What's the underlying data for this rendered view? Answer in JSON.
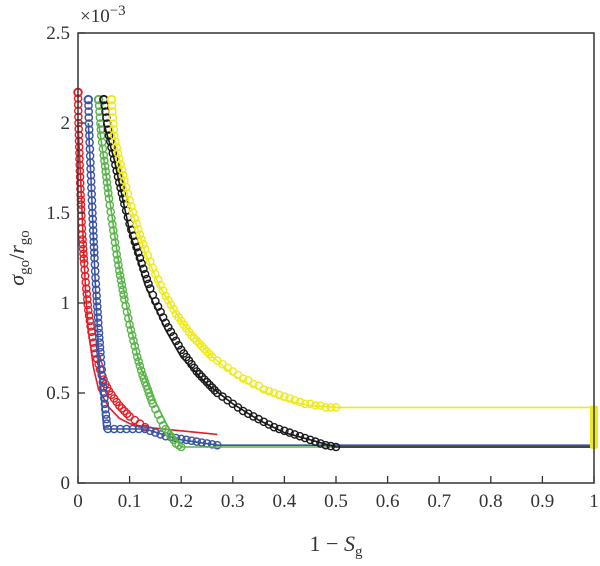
{
  "chart_data": {
    "type": "line",
    "title": "",
    "xlabel": {
      "prefix": "1 − ",
      "var": "S",
      "sub": "g"
    },
    "ylabel": {
      "num": "σ",
      "num_sub": "go",
      "slash": "/",
      "den": "r",
      "den_sub": "go"
    },
    "y_exponent": "×10",
    "y_exponent_power": "−3",
    "xlim": [
      0,
      1
    ],
    "ylim": [
      0,
      2.5
    ],
    "x_ticks": [
      "0",
      "0.1",
      "0.2",
      "0.3",
      "0.4",
      "0.5",
      "0.6",
      "0.7",
      "0.8",
      "0.9",
      "1"
    ],
    "x_tick_values": [
      0,
      0.1,
      0.2,
      0.3,
      0.4,
      0.5,
      0.6,
      0.7,
      0.8,
      0.9,
      1
    ],
    "y_ticks": [
      "0",
      "0.5",
      "1",
      "1.5",
      "2",
      "2.5"
    ],
    "y_tick_values": [
      0,
      0.5,
      1,
      1.5,
      2,
      2.5
    ],
    "grid": false,
    "legend": "none",
    "series": [
      {
        "color": "#e41e26",
        "line": [
          [
            0.0,
            2.0
          ],
          [
            0.005,
            1.7
          ],
          [
            0.01,
            1.35
          ],
          [
            0.015,
            1.05
          ],
          [
            0.02,
            0.85
          ],
          [
            0.03,
            0.64
          ],
          [
            0.04,
            0.52
          ],
          [
            0.06,
            0.42
          ],
          [
            0.08,
            0.36
          ],
          [
            0.1,
            0.33
          ],
          [
            0.13,
            0.31
          ],
          [
            0.27,
            0.27
          ]
        ],
        "markers_curve": [
          [
            0.0,
            2.17
          ],
          [
            0.001,
            2.0
          ],
          [
            0.002,
            1.9
          ],
          [
            0.003,
            1.8
          ],
          [
            0.004,
            1.7
          ],
          [
            0.005,
            1.6
          ],
          [
            0.006,
            1.52
          ],
          [
            0.007,
            1.45
          ],
          [
            0.008,
            1.38
          ],
          [
            0.01,
            1.3
          ],
          [
            0.012,
            1.22
          ],
          [
            0.014,
            1.15
          ],
          [
            0.016,
            1.08
          ],
          [
            0.018,
            1.02
          ],
          [
            0.02,
            0.96
          ],
          [
            0.023,
            0.9
          ],
          [
            0.026,
            0.84
          ],
          [
            0.03,
            0.78
          ],
          [
            0.034,
            0.72
          ],
          [
            0.04,
            0.66
          ],
          [
            0.046,
            0.6
          ],
          [
            0.053,
            0.55
          ],
          [
            0.06,
            0.51
          ],
          [
            0.07,
            0.47
          ],
          [
            0.08,
            0.43
          ],
          [
            0.09,
            0.4
          ],
          [
            0.1,
            0.37
          ],
          [
            0.11,
            0.35
          ],
          [
            0.12,
            0.33
          ],
          [
            0.13,
            0.31
          ]
        ],
        "markers_top": [
          [
            0.0,
            2.17
          ]
        ]
      },
      {
        "color": "#3a53a4",
        "line": [
          [
            0.02,
            2.0
          ],
          [
            0.025,
            1.7
          ],
          [
            0.03,
            1.35
          ],
          [
            0.035,
            1.0
          ],
          [
            0.04,
            0.72
          ],
          [
            0.045,
            0.5
          ],
          [
            0.05,
            0.3
          ],
          [
            0.13,
            0.3
          ],
          [
            0.2,
            0.24
          ],
          [
            0.27,
            0.21
          ],
          [
            1.0,
            0.21
          ]
        ],
        "markers_curve": [
          [
            0.02,
            2.13
          ],
          [
            0.022,
            1.93
          ],
          [
            0.024,
            1.78
          ],
          [
            0.026,
            1.64
          ],
          [
            0.028,
            1.5
          ],
          [
            0.03,
            1.37
          ],
          [
            0.032,
            1.25
          ],
          [
            0.034,
            1.14
          ],
          [
            0.036,
            1.04
          ],
          [
            0.038,
            0.95
          ],
          [
            0.04,
            0.86
          ],
          [
            0.042,
            0.78
          ],
          [
            0.044,
            0.7
          ],
          [
            0.046,
            0.63
          ],
          [
            0.048,
            0.56
          ],
          [
            0.05,
            0.5
          ],
          [
            0.052,
            0.44
          ],
          [
            0.054,
            0.38
          ],
          [
            0.056,
            0.33
          ],
          [
            0.058,
            0.3
          ],
          [
            0.13,
            0.3
          ],
          [
            0.15,
            0.28
          ],
          [
            0.17,
            0.26
          ],
          [
            0.19,
            0.25
          ],
          [
            0.21,
            0.24
          ],
          [
            0.23,
            0.23
          ],
          [
            0.25,
            0.22
          ],
          [
            0.27,
            0.21
          ]
        ],
        "markers_top": [
          [
            0.02,
            2.13
          ]
        ]
      },
      {
        "color": "#5ab54a",
        "line": [
          [
            0.04,
            2.0
          ],
          [
            0.06,
            1.6
          ],
          [
            0.08,
            1.2
          ],
          [
            0.1,
            0.9
          ],
          [
            0.12,
            0.65
          ],
          [
            0.15,
            0.45
          ],
          [
            0.18,
            0.28
          ],
          [
            0.2,
            0.2
          ],
          [
            1.0,
            0.2
          ]
        ],
        "markers_curve": [
          [
            0.04,
            2.13
          ],
          [
            0.045,
            1.93
          ],
          [
            0.05,
            1.82
          ],
          [
            0.055,
            1.7
          ],
          [
            0.06,
            1.58
          ],
          [
            0.065,
            1.47
          ],
          [
            0.07,
            1.37
          ],
          [
            0.075,
            1.27
          ],
          [
            0.08,
            1.18
          ],
          [
            0.085,
            1.1
          ],
          [
            0.09,
            1.02
          ],
          [
            0.095,
            0.95
          ],
          [
            0.1,
            0.88
          ],
          [
            0.105,
            0.82
          ],
          [
            0.11,
            0.76
          ],
          [
            0.115,
            0.7
          ],
          [
            0.12,
            0.65
          ],
          [
            0.125,
            0.6
          ],
          [
            0.13,
            0.56
          ],
          [
            0.135,
            0.52
          ],
          [
            0.14,
            0.48
          ],
          [
            0.145,
            0.44
          ],
          [
            0.15,
            0.41
          ],
          [
            0.155,
            0.38
          ],
          [
            0.16,
            0.35
          ],
          [
            0.165,
            0.32
          ],
          [
            0.17,
            0.3
          ],
          [
            0.175,
            0.28
          ],
          [
            0.18,
            0.26
          ],
          [
            0.185,
            0.24
          ],
          [
            0.19,
            0.22
          ],
          [
            0.195,
            0.21
          ],
          [
            0.2,
            0.2
          ]
        ],
        "markers_top": [
          [
            0.04,
            2.13
          ]
        ]
      },
      {
        "color": "#1a1a1a",
        "line": [
          [
            0.05,
            2.0
          ],
          [
            0.07,
            1.8
          ],
          [
            0.1,
            1.4
          ],
          [
            0.13,
            1.1
          ],
          [
            0.17,
            0.85
          ],
          [
            0.2,
            0.7
          ],
          [
            0.25,
            0.55
          ],
          [
            0.3,
            0.44
          ],
          [
            0.35,
            0.35
          ],
          [
            0.4,
            0.28
          ],
          [
            0.45,
            0.24
          ],
          [
            0.5,
            0.2
          ],
          [
            1.0,
            0.2
          ]
        ],
        "markers_curve": [
          [
            0.05,
            2.13
          ],
          [
            0.06,
            1.93
          ],
          [
            0.07,
            1.8
          ],
          [
            0.08,
            1.67
          ],
          [
            0.09,
            1.55
          ],
          [
            0.1,
            1.44
          ],
          [
            0.11,
            1.34
          ],
          [
            0.12,
            1.25
          ],
          [
            0.13,
            1.16
          ],
          [
            0.14,
            1.08
          ],
          [
            0.15,
            1.01
          ],
          [
            0.16,
            0.95
          ],
          [
            0.17,
            0.89
          ],
          [
            0.18,
            0.84
          ],
          [
            0.19,
            0.79
          ],
          [
            0.2,
            0.74
          ],
          [
            0.21,
            0.7
          ],
          [
            0.22,
            0.66
          ],
          [
            0.23,
            0.62
          ],
          [
            0.24,
            0.59
          ],
          [
            0.25,
            0.56
          ],
          [
            0.26,
            0.53
          ],
          [
            0.27,
            0.5
          ],
          [
            0.28,
            0.48
          ],
          [
            0.29,
            0.46
          ],
          [
            0.3,
            0.44
          ],
          [
            0.32,
            0.4
          ],
          [
            0.34,
            0.37
          ],
          [
            0.36,
            0.34
          ],
          [
            0.38,
            0.31
          ],
          [
            0.4,
            0.29
          ],
          [
            0.42,
            0.27
          ],
          [
            0.44,
            0.25
          ],
          [
            0.46,
            0.23
          ],
          [
            0.48,
            0.21
          ],
          [
            0.5,
            0.2
          ]
        ],
        "markers_top": [
          [
            0.05,
            2.13
          ]
        ]
      },
      {
        "color": "#eeea1e",
        "line": [
          [
            0.065,
            2.0
          ],
          [
            0.08,
            1.8
          ],
          [
            0.1,
            1.55
          ],
          [
            0.13,
            1.28
          ],
          [
            0.16,
            1.08
          ],
          [
            0.2,
            0.9
          ],
          [
            0.25,
            0.73
          ],
          [
            0.3,
            0.6
          ],
          [
            0.35,
            0.52
          ],
          [
            0.4,
            0.46
          ],
          [
            0.45,
            0.43
          ],
          [
            0.5,
            0.42
          ],
          [
            1.0,
            0.42
          ]
        ],
        "markers_curve": [
          [
            0.065,
            2.13
          ],
          [
            0.07,
            1.93
          ],
          [
            0.08,
            1.8
          ],
          [
            0.09,
            1.68
          ],
          [
            0.1,
            1.57
          ],
          [
            0.11,
            1.47
          ],
          [
            0.12,
            1.38
          ],
          [
            0.13,
            1.3
          ],
          [
            0.14,
            1.23
          ],
          [
            0.15,
            1.16
          ],
          [
            0.16,
            1.1
          ],
          [
            0.17,
            1.04
          ],
          [
            0.18,
            0.99
          ],
          [
            0.19,
            0.94
          ],
          [
            0.2,
            0.9
          ],
          [
            0.21,
            0.86
          ],
          [
            0.22,
            0.82
          ],
          [
            0.23,
            0.79
          ],
          [
            0.24,
            0.76
          ],
          [
            0.25,
            0.73
          ],
          [
            0.26,
            0.7
          ],
          [
            0.27,
            0.68
          ],
          [
            0.28,
            0.66
          ],
          [
            0.29,
            0.64
          ],
          [
            0.3,
            0.62
          ],
          [
            0.31,
            0.6
          ],
          [
            0.32,
            0.58
          ],
          [
            0.33,
            0.57
          ],
          [
            0.34,
            0.55
          ],
          [
            0.35,
            0.54
          ],
          [
            0.36,
            0.52
          ],
          [
            0.37,
            0.51
          ],
          [
            0.38,
            0.5
          ],
          [
            0.39,
            0.49
          ],
          [
            0.4,
            0.48
          ],
          [
            0.41,
            0.47
          ],
          [
            0.42,
            0.46
          ],
          [
            0.43,
            0.45
          ],
          [
            0.44,
            0.44
          ],
          [
            0.45,
            0.44
          ],
          [
            0.46,
            0.43
          ],
          [
            0.47,
            0.43
          ],
          [
            0.48,
            0.42
          ],
          [
            0.49,
            0.42
          ],
          [
            0.5,
            0.42
          ]
        ],
        "markers_top": [
          [
            0.065,
            2.13
          ]
        ],
        "end_bar": {
          "x": 1.0,
          "y_from": 0.19,
          "y_to": 0.43
        }
      }
    ]
  }
}
